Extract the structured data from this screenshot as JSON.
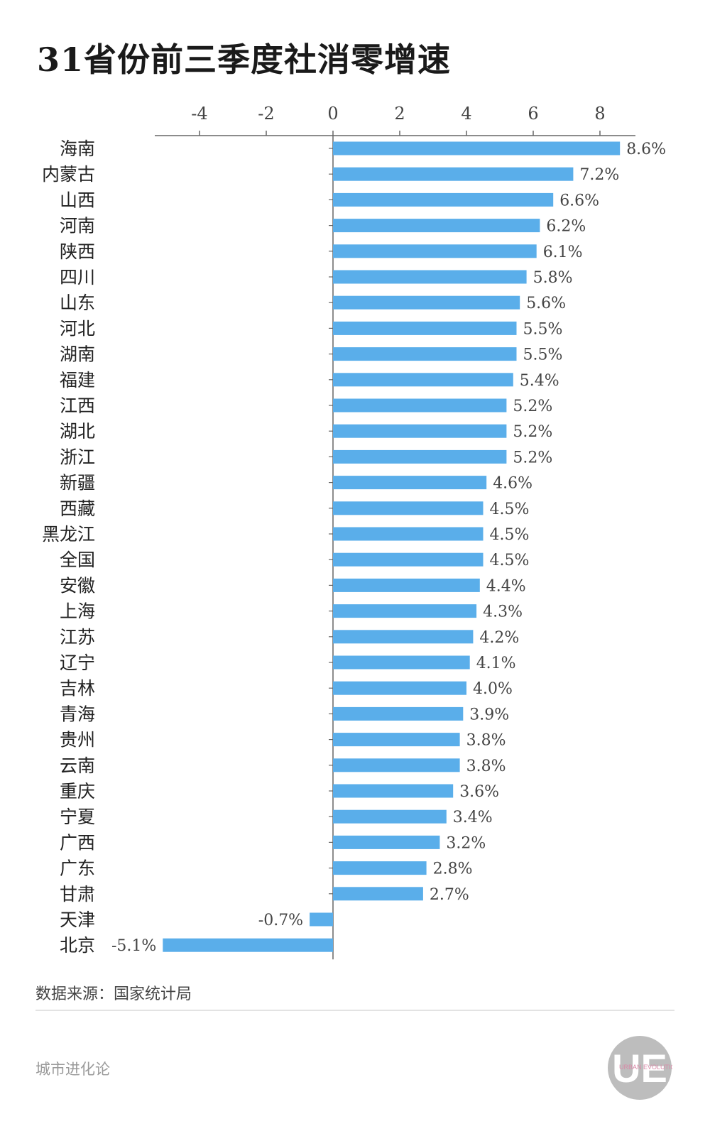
{
  "title": "31省份前三季度社消零增速",
  "source": "数据来源：国家统计局",
  "brand": "城市进化论",
  "logo": {
    "mark": "UE",
    "text": "URBAN EVOLUTION"
  },
  "colors": {
    "bar": "#5aaeea",
    "axis": "#666666",
    "label": "#444444"
  },
  "chart_data": {
    "type": "bar",
    "orientation": "horizontal",
    "xlim": [
      -5.3,
      9
    ],
    "ticks": [
      -4,
      -2,
      0,
      2,
      4,
      6,
      8
    ],
    "categories": [
      "海南",
      "内蒙古",
      "山西",
      "河南",
      "陕西",
      "四川",
      "山东",
      "河北",
      "湖南",
      "福建",
      "江西",
      "湖北",
      "浙江",
      "新疆",
      "西藏",
      "黑龙江",
      "全国",
      "安徽",
      "上海",
      "江苏",
      "辽宁",
      "吉林",
      "青海",
      "贵州",
      "云南",
      "重庆",
      "宁夏",
      "广西",
      "广东",
      "甘肃",
      "天津",
      "北京"
    ],
    "values": [
      8.6,
      7.2,
      6.6,
      6.2,
      6.1,
      5.8,
      5.6,
      5.5,
      5.5,
      5.4,
      5.2,
      5.2,
      5.2,
      4.6,
      4.5,
      4.5,
      4.5,
      4.4,
      4.3,
      4.2,
      4.1,
      4.0,
      3.9,
      3.8,
      3.8,
      3.6,
      3.4,
      3.2,
      2.8,
      2.7,
      -0.7,
      -5.1
    ],
    "value_labels": [
      "8.6%",
      "7.2%",
      "6.6%",
      "6.2%",
      "6.1%",
      "5.8%",
      "5.6%",
      "5.5%",
      "5.5%",
      "5.4%",
      "5.2%",
      "5.2%",
      "5.2%",
      "4.6%",
      "4.5%",
      "4.5%",
      "4.5%",
      "4.4%",
      "4.3%",
      "4.2%",
      "4.1%",
      "4.0%",
      "3.9%",
      "3.8%",
      "3.8%",
      "3.6%",
      "3.4%",
      "3.2%",
      "2.8%",
      "2.7%",
      "-0.7%",
      "-5.1%"
    ],
    "axis_position": "top",
    "grid": false
  }
}
